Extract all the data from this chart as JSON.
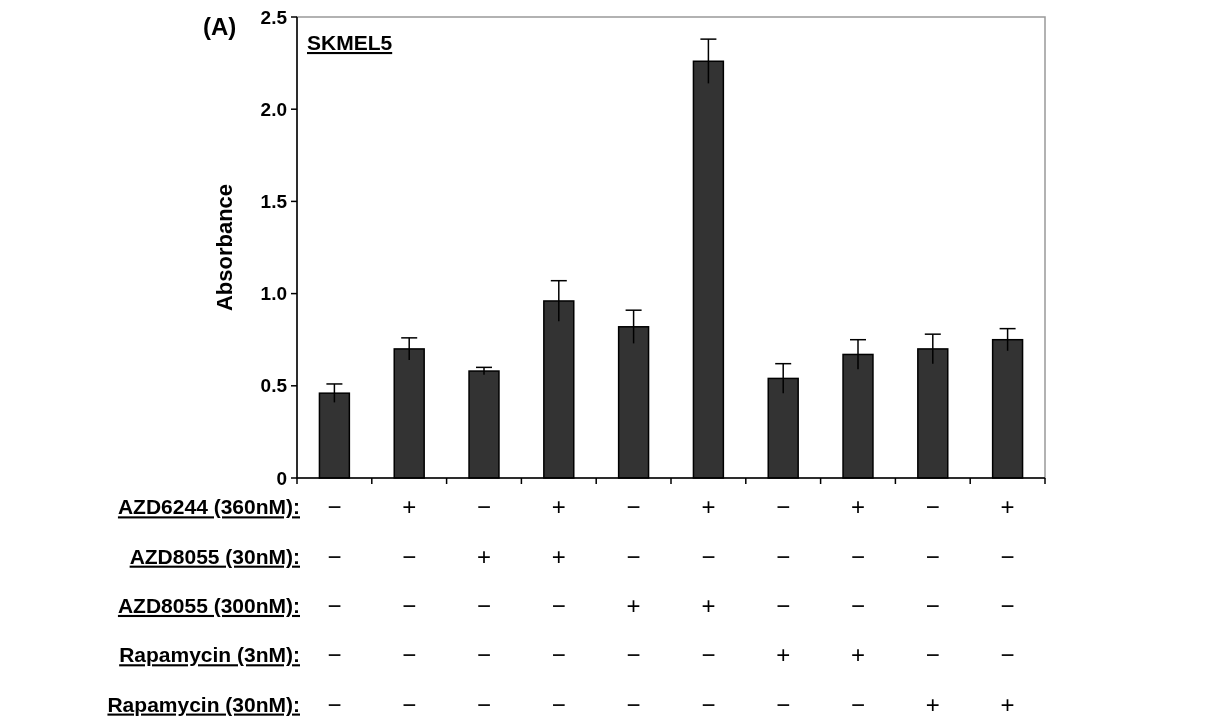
{
  "chart_data": {
    "type": "bar",
    "title": "SKMEL5",
    "ylabel": "Absorbance",
    "annotations": [
      "(A)",
      "AZD6244 (360nM):",
      "AZD8055 (30nM):",
      "AZD8055 (300nM):",
      "Rapamycin (3nM):",
      "Rapamycin (30nM):"
    ],
    "categories": [
      "−\n−\n−\n−\n−",
      "+\n−\n−\n−\n−",
      "−\n+\n−\n−\n−",
      "+\n+\n−\n−\n−",
      "−\n−\n+\n−\n−",
      "+\n−\n+\n−\n−",
      "−\n−\n−\n+\n−",
      "+\n−\n−\n+\n−",
      "−\n−\n−\n−\n+",
      "+\n−\n−\n−\n+"
    ],
    "values": [
      0.46,
      0.7,
      0.58,
      0.96,
      0.82,
      2.26,
      0.54,
      0.67,
      0.7,
      0.75
    ],
    "errors": [
      0.05,
      0.06,
      0.02,
      0.11,
      0.09,
      0.12,
      0.08,
      0.08,
      0.08,
      0.06
    ],
    "color": "#333333",
    "ylim": [
      0,
      2.5
    ],
    "yticks": [
      0,
      {
        "value": 0.5,
        "label": "0.5"
      },
      {
        "value": 1,
        "label": "1.0"
      },
      {
        "value": 1.5,
        "label": "1.5"
      },
      {
        "value": 2,
        "label": "2.0"
      },
      {
        "value": 2.5,
        "label": "2.5"
      }
    ],
    "grid": false
  }
}
